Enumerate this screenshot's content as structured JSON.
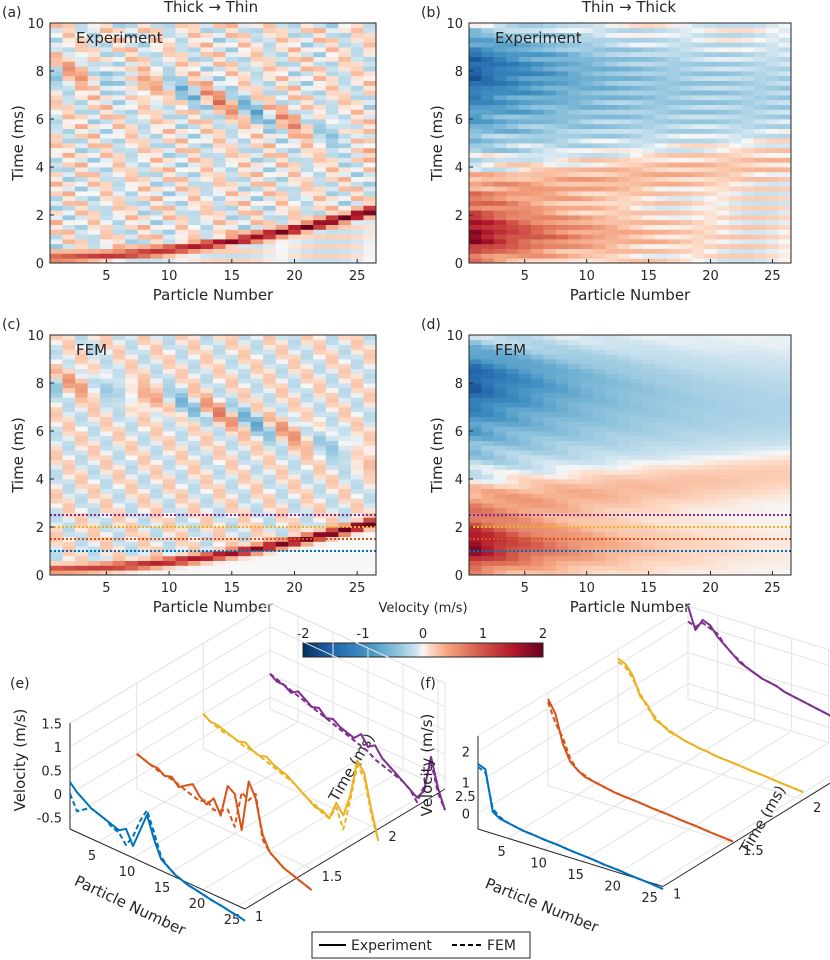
{
  "figure": {
    "column_titles": [
      "Thick → Thin",
      "Thin → Thick"
    ],
    "colors": {
      "blue": "#0072BD",
      "orange": "#D95319",
      "yellow": "#EDB120",
      "purple": "#7E2F8E",
      "cmap_neg": "#053061",
      "cmap_mid": "#f7f7f7",
      "cmap_pos": "#67001f",
      "axis": "#262626",
      "grid": "#e3e3e3"
    }
  },
  "colorbar": {
    "label": "Velocity (m/s)",
    "range": [
      -2,
      2
    ],
    "ticks": [
      "-2",
      "-1",
      "0",
      "1",
      "2"
    ]
  },
  "legend": {
    "solid_label": "Experiment",
    "dashed_label": "FEM"
  },
  "chart_data": [
    {
      "id": "a",
      "panel_label": "(a)",
      "type": "heatmap",
      "title": "Thick → Thin",
      "inset": "Experiment",
      "xlabel": "Particle Number",
      "ylabel": "Time (ms)",
      "xlim": [
        0.5,
        26.5
      ],
      "ylim": [
        0,
        10
      ],
      "xticks": [
        "5",
        "10",
        "15",
        "20",
        "25"
      ],
      "yticks": [
        "0",
        "2",
        "4",
        "6",
        "8",
        "10"
      ],
      "particles": 26,
      "time_step_ms": 0.2,
      "pattern": "forward",
      "noise": 1,
      "colorbar_range": [
        -2,
        2
      ]
    },
    {
      "id": "b",
      "panel_label": "(b)",
      "type": "heatmap",
      "title": "Thin → Thick",
      "inset": "Experiment",
      "xlabel": "Particle Number",
      "ylabel": "Time (ms)",
      "xlim": [
        0.5,
        26.5
      ],
      "ylim": [
        0,
        10
      ],
      "xticks": [
        "5",
        "10",
        "15",
        "20",
        "25"
      ],
      "yticks": [
        "0",
        "2",
        "4",
        "6",
        "8",
        "10"
      ],
      "particles": 26,
      "time_step_ms": 0.2,
      "pattern": "reverse",
      "noise": 1,
      "colorbar_range": [
        -2,
        2
      ]
    },
    {
      "id": "c",
      "panel_label": "(c)",
      "type": "heatmap",
      "title": "",
      "inset": "FEM",
      "xlabel": "Particle Number",
      "ylabel": "Time (ms)",
      "xlim": [
        0.5,
        26.5
      ],
      "ylim": [
        0,
        10
      ],
      "xticks": [
        "5",
        "10",
        "15",
        "20",
        "25"
      ],
      "yticks": [
        "0",
        "2",
        "4",
        "6",
        "8",
        "10"
      ],
      "particles": 26,
      "time_step_ms": 0.2,
      "pattern": "forward",
      "noise": 0,
      "colorbar_range": [
        -2,
        2
      ],
      "reference_lines": [
        {
          "time_ms": 1.0,
          "color": "#0072BD"
        },
        {
          "time_ms": 1.5,
          "color": "#D95319"
        },
        {
          "time_ms": 2.0,
          "color": "#EDB120"
        },
        {
          "time_ms": 2.5,
          "color": "#7E2F8E"
        }
      ]
    },
    {
      "id": "d",
      "panel_label": "(d)",
      "type": "heatmap",
      "title": "",
      "inset": "FEM",
      "xlabel": "Particle Number",
      "ylabel": "Time (ms)",
      "xlim": [
        0.5,
        26.5
      ],
      "ylim": [
        0,
        10
      ],
      "xticks": [
        "5",
        "10",
        "15",
        "20",
        "25"
      ],
      "yticks": [
        "0",
        "2",
        "4",
        "6",
        "8",
        "10"
      ],
      "particles": 26,
      "time_step_ms": 0.2,
      "pattern": "reverse",
      "noise": 0,
      "colorbar_range": [
        -2,
        2
      ],
      "reference_lines": [
        {
          "time_ms": 1.0,
          "color": "#0072BD"
        },
        {
          "time_ms": 1.5,
          "color": "#D95319"
        },
        {
          "time_ms": 2.0,
          "color": "#EDB120"
        },
        {
          "time_ms": 2.5,
          "color": "#7E2F8E"
        }
      ]
    },
    {
      "id": "e",
      "panel_label": "(e)",
      "type": "line",
      "projection": "3d",
      "xlabel": "Particle Number",
      "ylabel": "Time (ms)",
      "zlabel": "Velocity (m/s)",
      "xlim": [
        1,
        26
      ],
      "ylim": [
        1,
        2.5
      ],
      "zlim": [
        -0.75,
        1.5
      ],
      "xticks": [
        "5",
        "10",
        "15",
        "20",
        "25"
      ],
      "yticks": [
        "1",
        "1.5",
        "2",
        "2.5"
      ],
      "zticks": [
        "-0.5",
        "0",
        "0.5",
        "1",
        "1.5"
      ],
      "series": [
        {
          "time_ms": 1.0,
          "color": "#0072BD",
          "experiment": [
            0.25,
            0.1,
            0.0,
            -0.1,
            -0.15,
            -0.2,
            -0.25,
            -0.3,
            -0.2,
            -0.5,
            -0.1,
            0.3,
            -0.15,
            -0.5,
            -0.6,
            -0.7,
            -0.75,
            -0.8,
            -0.82,
            -0.85,
            -0.88,
            -0.9,
            -0.92,
            -0.95,
            -0.97,
            -1.0
          ],
          "fem": [
            0.0,
            -0.3,
            -0.2,
            -0.1,
            -0.15,
            -0.2,
            -0.3,
            -0.35,
            -0.55,
            -0.3,
            0.1,
            0.4,
            0.0,
            -0.45,
            -0.6,
            -0.7,
            -0.75,
            -0.8,
            -0.82,
            -0.85,
            -0.88,
            -0.9,
            -0.92,
            -0.95,
            -0.97,
            -1.0
          ]
        },
        {
          "time_ms": 1.5,
          "color": "#D95319",
          "experiment": [
            0.0,
            -0.05,
            -0.1,
            -0.1,
            -0.2,
            -0.15,
            -0.3,
            -0.2,
            -0.1,
            -0.3,
            -0.4,
            -0.2,
            -0.5,
            0.2,
            0.1,
            -0.6,
            0.5,
            0.2,
            -0.5,
            -0.8,
            -0.9,
            -1.0,
            -1.05,
            -1.1,
            -1.15,
            -1.2
          ],
          "fem": [
            0.0,
            -0.05,
            -0.1,
            -0.15,
            -0.2,
            -0.2,
            -0.25,
            -0.3,
            -0.35,
            -0.4,
            -0.3,
            -0.45,
            -0.4,
            -0.3,
            -0.6,
            0.2,
            0.1,
            0.3,
            -0.6,
            -0.8,
            -0.9,
            -1.0,
            -1.05,
            -1.1,
            -1.15,
            -1.2
          ]
        },
        {
          "time_ms": 2.0,
          "color": "#EDB120",
          "experiment": [
            0.0,
            -0.1,
            -0.1,
            -0.15,
            -0.2,
            -0.25,
            -0.2,
            -0.3,
            -0.35,
            -0.3,
            -0.4,
            -0.45,
            -0.5,
            -0.6,
            -0.7,
            -0.8,
            -0.9,
            -0.9,
            -1.0,
            -0.6,
            -0.8,
            -0.3,
            0.5,
            0.3,
            -0.4,
            -1.0
          ],
          "fem": [
            0.0,
            -0.1,
            -0.15,
            -0.2,
            -0.2,
            -0.25,
            -0.3,
            -0.3,
            -0.35,
            -0.4,
            -0.45,
            -0.5,
            -0.55,
            -0.6,
            -0.7,
            -0.8,
            -0.85,
            -0.95,
            -1.0,
            -0.7,
            -1.1,
            -0.4,
            0.4,
            0.2,
            -0.5,
            -1.0
          ]
        },
        {
          "time_ms": 2.5,
          "color": "#7E2F8E",
          "experiment": [
            0.0,
            -0.1,
            -0.1,
            -0.2,
            -0.1,
            -0.2,
            -0.3,
            -0.25,
            -0.4,
            -0.35,
            -0.45,
            -0.5,
            -0.55,
            -0.4,
            -0.6,
            -0.5,
            -0.7,
            -0.8,
            -0.9,
            -1.0,
            -1.1,
            -1.2,
            -1.0,
            -0.2,
            -0.8,
            -1.2
          ],
          "fem": [
            0.0,
            -0.05,
            -0.1,
            -0.15,
            -0.2,
            -0.25,
            -0.3,
            -0.35,
            -0.4,
            -0.45,
            -0.5,
            -0.55,
            -0.6,
            -0.65,
            -0.7,
            -0.8,
            -0.85,
            -0.9,
            -0.95,
            -1.0,
            -1.1,
            -1.3,
            -0.9,
            -0.3,
            -0.9,
            -1.2
          ]
        }
      ]
    },
    {
      "id": "f",
      "panel_label": "(f)",
      "type": "line",
      "projection": "3d",
      "xlabel": "Particle Number",
      "ylabel": "Time (ms)",
      "zlabel": "Velocity (m/s)",
      "xlim": [
        1,
        26
      ],
      "ylim": [
        1,
        2.5
      ],
      "zlim": [
        -0.5,
        2.5
      ],
      "xticks": [
        "5",
        "10",
        "15",
        "20",
        "25"
      ],
      "yticks": [
        "1",
        "1.5",
        "2",
        "2.5"
      ],
      "zticks": [
        "0",
        "1",
        "2"
      ],
      "series": [
        {
          "time_ms": 1.0,
          "color": "#0072BD",
          "experiment": [
            1.6,
            1.5,
            0.2,
            0.05,
            0.0,
            -0.05,
            -0.1,
            -0.12,
            -0.15,
            -0.18,
            -0.2,
            -0.22,
            -0.25,
            -0.28,
            -0.3,
            -0.32,
            -0.35,
            -0.38,
            -0.4,
            -0.42,
            -0.45,
            -0.48,
            -0.5,
            -0.52,
            -0.55,
            -0.58
          ],
          "fem": [
            1.5,
            1.4,
            0.3,
            0.1,
            0.0,
            -0.05,
            -0.1,
            -0.13,
            -0.15,
            -0.18,
            -0.2,
            -0.22,
            -0.25,
            -0.28,
            -0.3,
            -0.32,
            -0.35,
            -0.38,
            -0.4,
            -0.42,
            -0.45,
            -0.48,
            -0.5,
            -0.52,
            -0.55,
            -0.58
          ]
        },
        {
          "time_ms": 1.5,
          "color": "#D95319",
          "experiment": [
            2.3,
            1.9,
            1.0,
            0.5,
            0.3,
            0.15,
            0.1,
            0.05,
            0.0,
            -0.05,
            -0.08,
            -0.1,
            -0.12,
            -0.15,
            -0.18,
            -0.2,
            -0.22,
            -0.25,
            -0.28,
            -0.3,
            -0.32,
            -0.35,
            -0.38,
            -0.4,
            -0.42,
            -0.45
          ],
          "fem": [
            2.2,
            1.6,
            1.2,
            0.6,
            0.3,
            0.2,
            0.1,
            0.05,
            0.0,
            -0.05,
            -0.08,
            -0.1,
            -0.12,
            -0.15,
            -0.18,
            -0.2,
            -0.22,
            -0.25,
            -0.28,
            -0.3,
            -0.32,
            -0.35,
            -0.38,
            -0.4,
            -0.42,
            -0.45
          ]
        },
        {
          "time_ms": 2.0,
          "color": "#EDB120",
          "experiment": [
            2.2,
            2.1,
            1.8,
            1.2,
            1.0,
            0.6,
            0.5,
            0.35,
            0.3,
            0.22,
            0.18,
            0.12,
            0.1,
            0.05,
            0.02,
            0.0,
            -0.02,
            -0.05,
            -0.08,
            -0.1,
            -0.12,
            -0.15,
            -0.18,
            -0.2,
            -0.22,
            -0.25
          ],
          "fem": [
            2.1,
            2.0,
            1.7,
            1.3,
            0.9,
            0.7,
            0.5,
            0.4,
            0.3,
            0.22,
            0.18,
            0.12,
            0.1,
            0.05,
            0.02,
            0.0,
            -0.02,
            -0.05,
            -0.08,
            -0.1,
            -0.12,
            -0.15,
            -0.18,
            -0.2,
            -0.22,
            -0.25
          ]
        },
        {
          "time_ms": 2.5,
          "color": "#7E2F8E",
          "experiment": [
            2.5,
            1.8,
            2.2,
            2.1,
            1.8,
            1.6,
            1.4,
            1.2,
            1.1,
            1.0,
            0.9,
            0.85,
            0.8,
            0.7,
            0.65,
            0.6,
            0.55,
            0.5,
            0.45,
            0.4,
            0.35,
            0.3,
            0.25,
            0.2,
            0.15,
            0.1
          ],
          "fem": [
            2.0,
            1.9,
            2.1,
            2.0,
            1.9,
            1.6,
            1.4,
            1.25,
            1.1,
            1.0,
            0.9,
            0.85,
            0.8,
            0.7,
            0.65,
            0.6,
            0.55,
            0.5,
            0.45,
            0.4,
            0.35,
            0.3,
            0.25,
            0.2,
            0.15,
            0.1
          ]
        }
      ]
    }
  ]
}
